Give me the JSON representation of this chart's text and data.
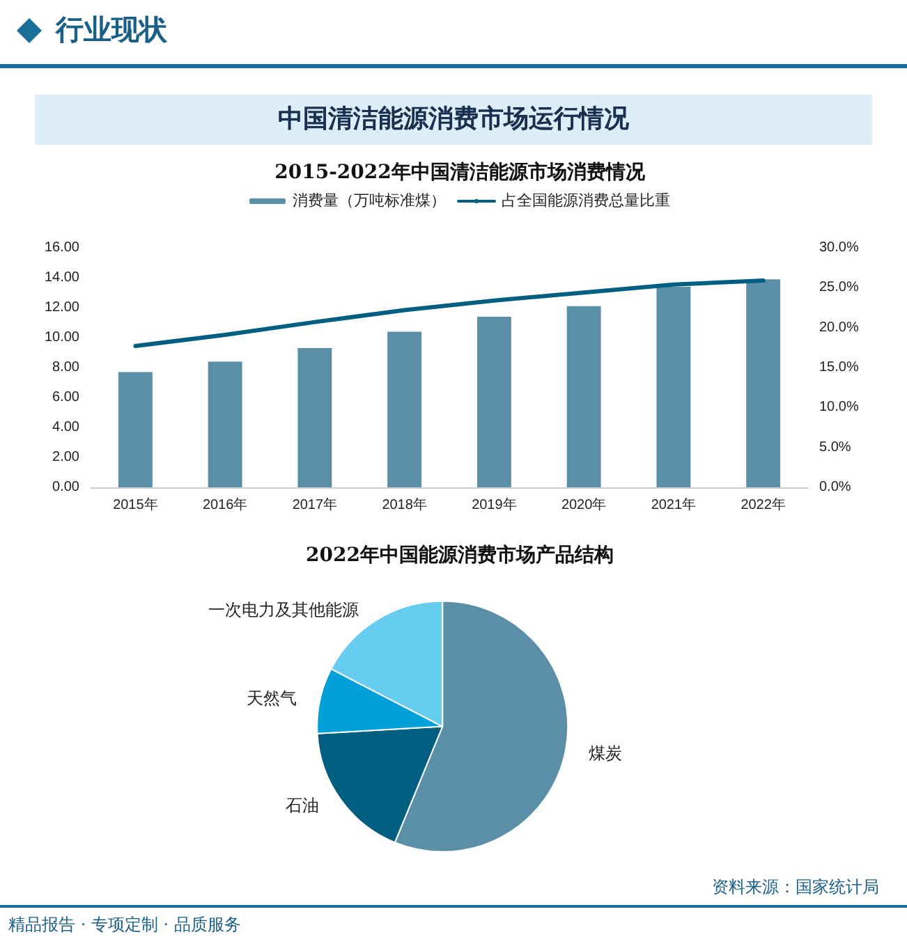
{
  "chart_data": [
    {
      "type": "bar",
      "title": "2015-2022年中国清洁能源市场消费情况",
      "annotations": [
        "行业现状",
        "中国清洁能源消费市场运行情况"
      ],
      "categories": [
        "2015年",
        "2016年",
        "2017年",
        "2018年",
        "2019年",
        "2020年",
        "2021年",
        "2022年"
      ],
      "series": [
        {
          "name": "消费量（万吨标准煤）",
          "color": "#5b8fa8",
          "values": [
            7.7,
            8.4,
            9.3,
            10.4,
            11.4,
            12.1,
            13.4,
            13.9
          ]
        },
        {
          "name": "占全国能源消费总量比重",
          "type": "line",
          "axis": "y2",
          "color": "#005f80",
          "values": [
            17.7,
            19.1,
            20.7,
            22.2,
            23.4,
            24.4,
            25.4,
            25.9
          ]
        }
      ],
      "ylim": [
        0,
        16
      ],
      "yticks": [
        {
          "value": 0,
          "label": "0.00"
        },
        {
          "value": 2,
          "label": "2.00"
        },
        {
          "value": 4,
          "label": "4.00"
        },
        {
          "value": 6,
          "label": "6.00"
        },
        {
          "value": 8,
          "label": "8.00"
        },
        {
          "value": 10,
          "label": "10.00"
        },
        {
          "value": 12,
          "label": "12.00"
        },
        {
          "value": 14,
          "label": "14.00"
        },
        {
          "value": 16,
          "label": "16.00"
        }
      ],
      "y2lim": [
        0,
        30
      ],
      "y2ticks": [
        {
          "value": 0,
          "label": "0.0%"
        },
        {
          "value": 5,
          "label": "5.0%"
        },
        {
          "value": 10,
          "label": "10.0%"
        },
        {
          "value": 15,
          "label": "15.0%"
        },
        {
          "value": 20,
          "label": "20.0%"
        },
        {
          "value": 25,
          "label": "25.0%"
        },
        {
          "value": 30,
          "label": "30.0%"
        }
      ],
      "grid": false,
      "legend": "top",
      "marker": "none",
      "line_style": "solid"
    },
    {
      "type": "pie",
      "title": "2022年中国能源消费市场产品结构",
      "annotations": [
        "资料来源：国家统计局",
        "精品报告 · 专项定制 · 品质服务"
      ],
      "categories": [
        "煤炭",
        "石油",
        "天然气",
        "一次电力及其他能源"
      ],
      "values": [
        56.2,
        17.9,
        8.5,
        17.4
      ],
      "colors": [
        "#5b8fa8",
        "#005f80",
        "#00a0d8",
        "#66ccf0"
      ],
      "legend": false
    }
  ]
}
